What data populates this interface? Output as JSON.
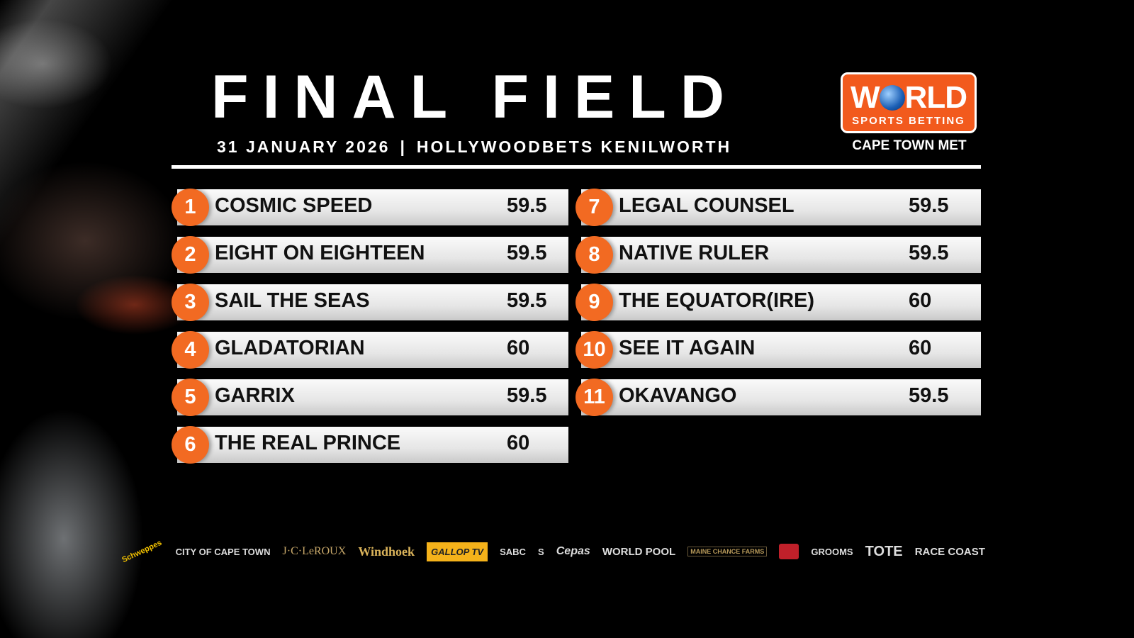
{
  "header": {
    "title": "FINAL FIELD",
    "date": "31 JANUARY 2026",
    "separator": "|",
    "venue": "HOLLYWOODBETS KENILWORTH",
    "event": "CAPE TOWN MET"
  },
  "logo": {
    "line1_a": "W",
    "line1_b": "RLD",
    "line2": "SPORTS BETTING",
    "color": "#f25a1d"
  },
  "accent_color": "#f26a22",
  "field": [
    {
      "num": "1",
      "name": "COSMIC SPEED",
      "weight": "59.5"
    },
    {
      "num": "2",
      "name": "EIGHT ON EIGHTEEN",
      "weight": "59.5"
    },
    {
      "num": "3",
      "name": "SAIL THE SEAS",
      "weight": "59.5"
    },
    {
      "num": "4",
      "name": "GLADATORIAN",
      "weight": "60"
    },
    {
      "num": "5",
      "name": "GARRIX",
      "weight": "59.5"
    },
    {
      "num": "6",
      "name": "THE REAL PRINCE",
      "weight": "60"
    },
    {
      "num": "7",
      "name": "LEGAL COUNSEL",
      "weight": "59.5"
    },
    {
      "num": "8",
      "name": "NATIVE RULER",
      "weight": "59.5"
    },
    {
      "num": "9",
      "name": "THE EQUATOR(IRE)",
      "weight": "60"
    },
    {
      "num": "10",
      "name": "SEE IT AGAIN",
      "weight": "60"
    },
    {
      "num": "11",
      "name": "OKAVANGO",
      "weight": "59.5"
    }
  ],
  "sponsors": [
    "Schweppes",
    "CITY OF CAPE TOWN",
    "J·C·LeROUX",
    "Windhoek",
    "GALLOP TV",
    "SABC",
    "S",
    "Cepas",
    "WORLD POOL",
    "MAINE CHANCE FARMS",
    "",
    "GROOMS",
    "TOTE",
    "RACE COAST"
  ]
}
